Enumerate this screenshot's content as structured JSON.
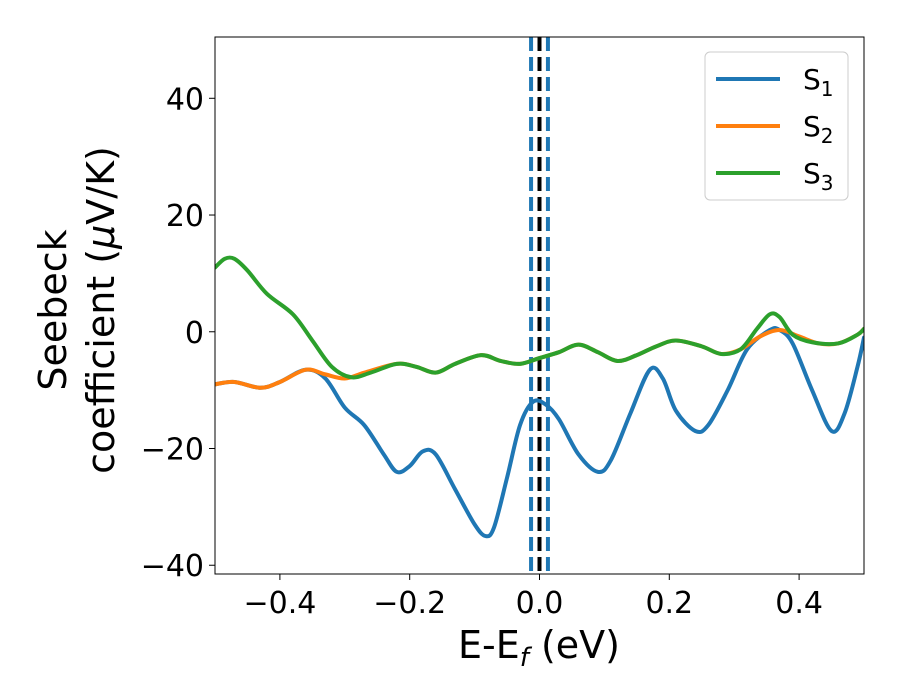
{
  "chart_data": {
    "type": "line",
    "title": "",
    "xlabel": {
      "main": "E-E",
      "sub": "f",
      "unit": " (eV)"
    },
    "ylabel": {
      "line1": "Seebeck",
      "line2_prefix": "coefficient  (",
      "mu": "μ",
      "line2_suffix": "V/K)"
    },
    "xlim": [
      -0.5,
      0.5
    ],
    "ylim": [
      -41.5,
      50.5
    ],
    "xticks": [
      -0.4,
      -0.2,
      0.0,
      0.2,
      0.4
    ],
    "xtick_labels": [
      "−0.4",
      "−0.2",
      "0.0",
      "0.2",
      "0.4"
    ],
    "yticks": [
      -40,
      -20,
      0,
      20,
      40
    ],
    "ytick_labels": [
      "−40",
      "−20",
      "0",
      "20",
      "40"
    ],
    "grid": false,
    "legend_position": "top-right",
    "vlines": [
      {
        "x": -0.013,
        "style": "dashed",
        "color": "#1f77b4"
      },
      {
        "x": 0.0,
        "style": "dashed",
        "color": "#000000"
      },
      {
        "x": 0.013,
        "style": "dashed",
        "color": "#1f77b4"
      }
    ],
    "series": [
      {
        "name": "S",
        "sub": "1",
        "color": "#1f77b4",
        "points": [
          [
            -0.5,
            -9.0
          ],
          [
            -0.47,
            -8.6
          ],
          [
            -0.43,
            -9.6
          ],
          [
            -0.4,
            -8.6
          ],
          [
            -0.36,
            -6.5
          ],
          [
            -0.33,
            -8.0
          ],
          [
            -0.3,
            -13.0
          ],
          [
            -0.27,
            -16.0
          ],
          [
            -0.24,
            -21.0
          ],
          [
            -0.22,
            -24.0
          ],
          [
            -0.2,
            -23.0
          ],
          [
            -0.18,
            -20.5
          ],
          [
            -0.16,
            -21.0
          ],
          [
            -0.13,
            -27.0
          ],
          [
            -0.1,
            -33.0
          ],
          [
            -0.083,
            -35.0
          ],
          [
            -0.07,
            -33.5
          ],
          [
            -0.05,
            -25.0
          ],
          [
            -0.03,
            -16.0
          ],
          [
            -0.01,
            -12.0
          ],
          [
            0.01,
            -12.5
          ],
          [
            0.03,
            -15.0
          ],
          [
            0.06,
            -21.0
          ],
          [
            0.09,
            -24.0
          ],
          [
            0.11,
            -22.0
          ],
          [
            0.14,
            -14.0
          ],
          [
            0.17,
            -6.5
          ],
          [
            0.19,
            -8.0
          ],
          [
            0.21,
            -13.5
          ],
          [
            0.24,
            -17.0
          ],
          [
            0.26,
            -16.0
          ],
          [
            0.29,
            -10.0
          ],
          [
            0.32,
            -3.0
          ],
          [
            0.355,
            0.3
          ],
          [
            0.37,
            0.3
          ],
          [
            0.39,
            -2.0
          ],
          [
            0.42,
            -10.0
          ],
          [
            0.45,
            -17.0
          ],
          [
            0.47,
            -14.0
          ],
          [
            0.49,
            -6.0
          ],
          [
            0.5,
            -1.0
          ]
        ]
      },
      {
        "name": "S",
        "sub": "2",
        "color": "#ff7f0e",
        "points": [
          [
            -0.5,
            -9.0
          ],
          [
            -0.47,
            -8.6
          ],
          [
            -0.43,
            -9.6
          ],
          [
            -0.4,
            -8.6
          ],
          [
            -0.36,
            -6.5
          ],
          [
            -0.33,
            -7.3
          ],
          [
            -0.3,
            -8.0
          ],
          [
            -0.27,
            -7.0
          ],
          [
            -0.22,
            -5.5
          ],
          [
            -0.19,
            -6.0
          ],
          [
            -0.16,
            -7.0
          ],
          [
            -0.13,
            -5.5
          ],
          [
            -0.09,
            -4.0
          ],
          [
            -0.06,
            -5.0
          ],
          [
            -0.03,
            -5.5
          ],
          [
            0.0,
            -4.5
          ],
          [
            0.03,
            -3.5
          ],
          [
            0.06,
            -2.2
          ],
          [
            0.09,
            -3.5
          ],
          [
            0.12,
            -5.0
          ],
          [
            0.15,
            -4.0
          ],
          [
            0.18,
            -2.5
          ],
          [
            0.21,
            -1.5
          ],
          [
            0.25,
            -2.5
          ],
          [
            0.28,
            -3.8
          ],
          [
            0.31,
            -3.0
          ],
          [
            0.34,
            -0.8
          ],
          [
            0.37,
            0.3
          ],
          [
            0.4,
            -0.8
          ],
          [
            0.43,
            -2.0
          ],
          [
            0.46,
            -2.0
          ],
          [
            0.49,
            -0.5
          ],
          [
            0.5,
            0.5
          ]
        ]
      },
      {
        "name": "S",
        "sub": "3",
        "color": "#2ca02c",
        "points": [
          [
            -0.5,
            11.0
          ],
          [
            -0.485,
            12.5
          ],
          [
            -0.47,
            12.5
          ],
          [
            -0.45,
            10.5
          ],
          [
            -0.42,
            6.5
          ],
          [
            -0.38,
            3.0
          ],
          [
            -0.35,
            -1.5
          ],
          [
            -0.32,
            -6.0
          ],
          [
            -0.29,
            -7.8
          ],
          [
            -0.26,
            -7.0
          ],
          [
            -0.22,
            -5.5
          ],
          [
            -0.19,
            -6.0
          ],
          [
            -0.16,
            -7.0
          ],
          [
            -0.13,
            -5.5
          ],
          [
            -0.09,
            -4.0
          ],
          [
            -0.06,
            -5.0
          ],
          [
            -0.03,
            -5.5
          ],
          [
            0.0,
            -4.5
          ],
          [
            0.03,
            -3.5
          ],
          [
            0.06,
            -2.2
          ],
          [
            0.09,
            -3.5
          ],
          [
            0.12,
            -5.0
          ],
          [
            0.15,
            -4.0
          ],
          [
            0.18,
            -2.5
          ],
          [
            0.21,
            -1.5
          ],
          [
            0.25,
            -2.5
          ],
          [
            0.28,
            -3.8
          ],
          [
            0.31,
            -3.0
          ],
          [
            0.335,
            0.5
          ],
          [
            0.355,
            3.0
          ],
          [
            0.37,
            2.5
          ],
          [
            0.39,
            -0.5
          ],
          [
            0.42,
            -1.8
          ],
          [
            0.46,
            -2.0
          ],
          [
            0.49,
            -0.5
          ],
          [
            0.5,
            0.5
          ]
        ]
      }
    ]
  }
}
